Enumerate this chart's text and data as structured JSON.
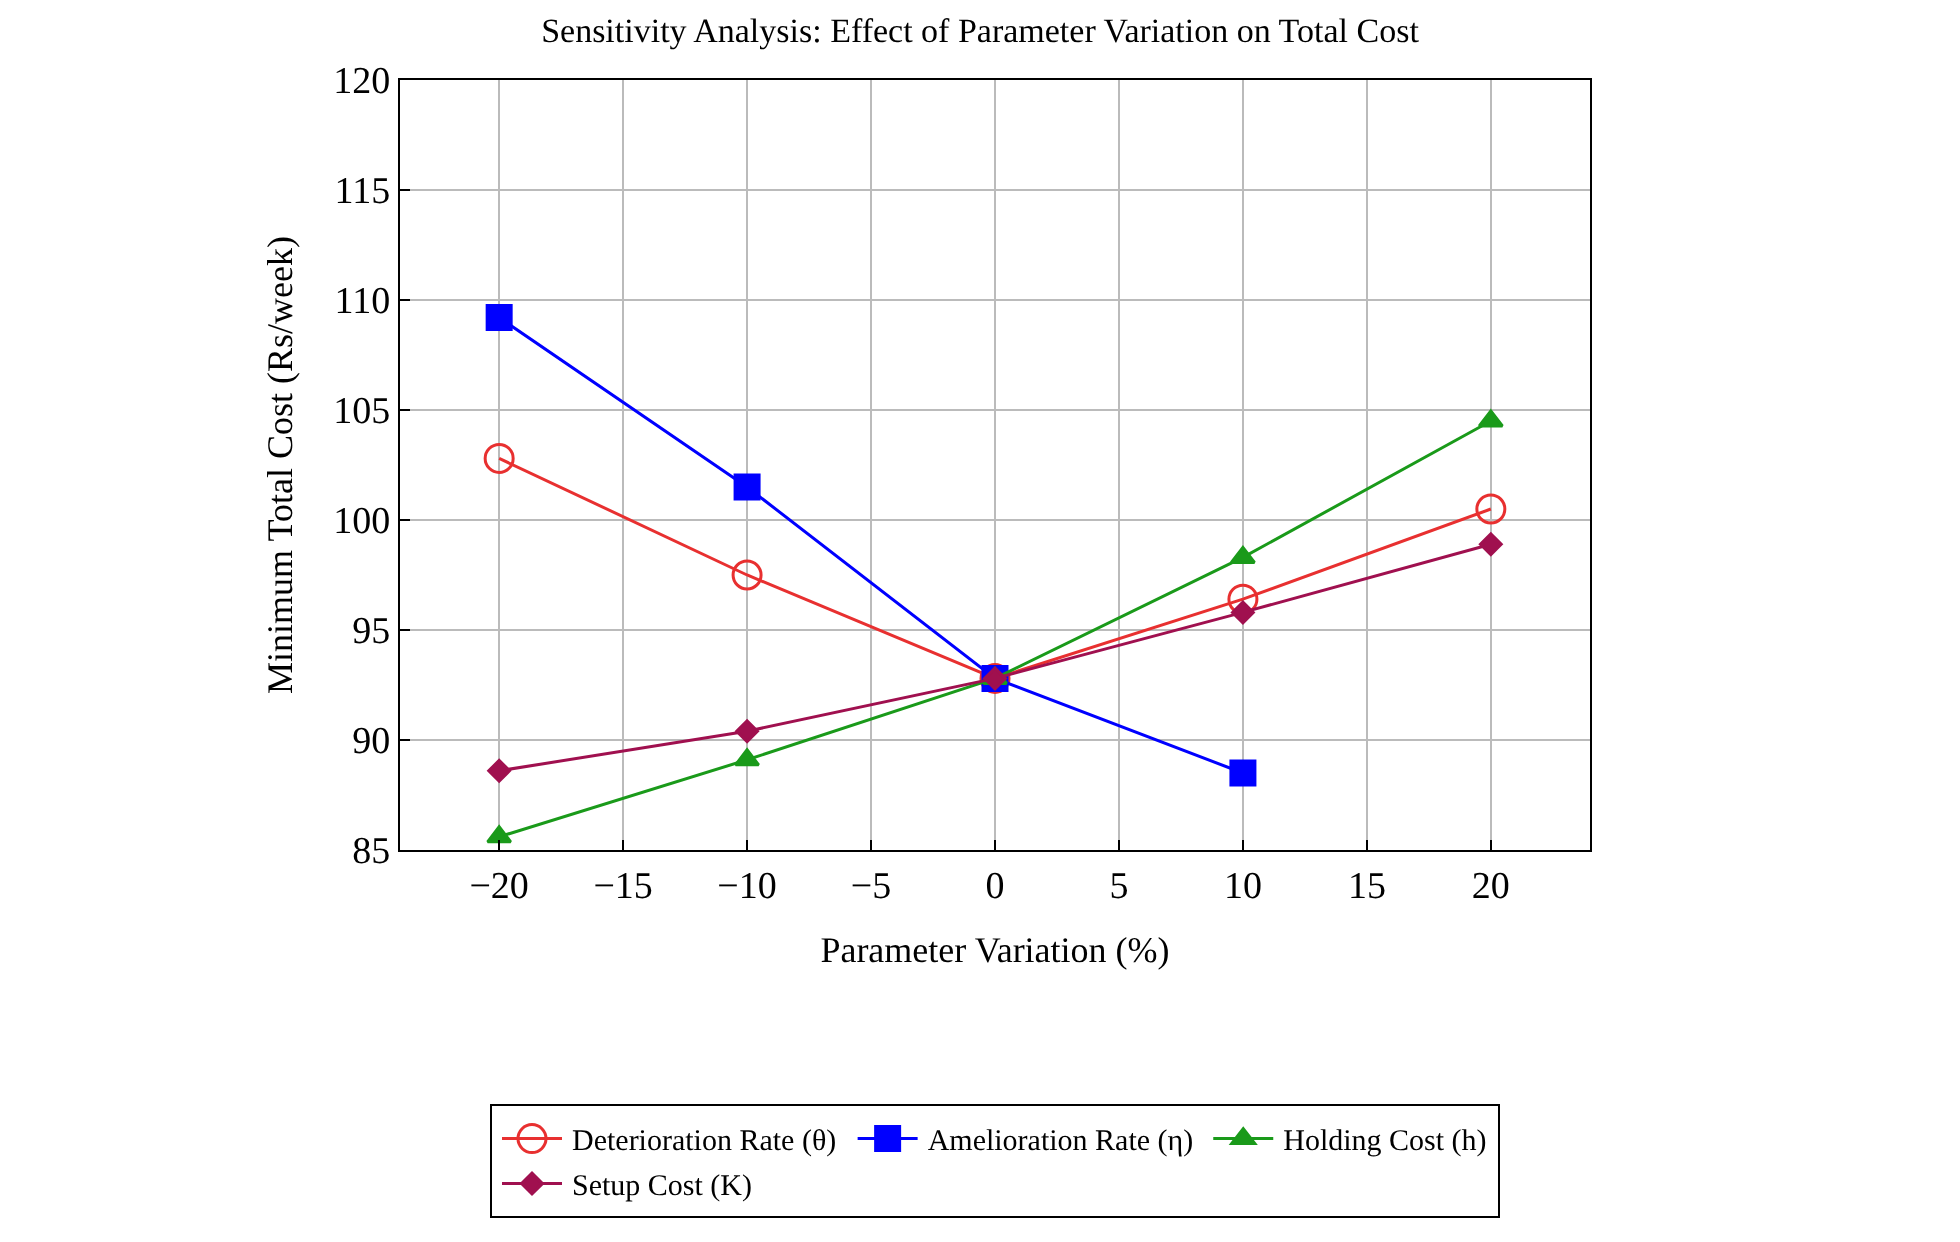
{
  "chart_data": {
    "type": "line",
    "title": "Sensitivity Analysis: Effect of Parameter Variation on Total Cost",
    "xlabel": "Parameter Variation (%)",
    "ylabel": "Minimum Total Cost (Rs/week)",
    "x": [
      -20,
      -10,
      0,
      10,
      20
    ],
    "series": [
      {
        "name": "Deterioration Rate (θ)",
        "color": "#e83030",
        "marker": "circle-open",
        "values": [
          102.8,
          97.5,
          92.8,
          96.4,
          100.5
        ]
      },
      {
        "name": "Amelioration Rate (η)",
        "color": "#0000ff",
        "marker": "square",
        "values": [
          109.2,
          101.5,
          92.8,
          88.5,
          null
        ]
      },
      {
        "name": "Holding Cost (h)",
        "color": "#1a9a1a",
        "marker": "triangle",
        "values": [
          85.6,
          89.1,
          92.8,
          98.3,
          104.5
        ]
      },
      {
        "name": "Setup Cost (K)",
        "color": "#a0104f",
        "marker": "diamond",
        "values": [
          88.6,
          90.4,
          92.8,
          95.8,
          98.9
        ]
      }
    ],
    "xlim": [
      -24,
      24
    ],
    "ylim": [
      85,
      120
    ],
    "xticks": [
      {
        "value": -20,
        "label": "−20"
      },
      {
        "value": -15,
        "label": "−15"
      },
      {
        "value": -10,
        "label": "−10"
      },
      {
        "value": -5,
        "label": "−5"
      },
      0,
      5,
      10,
      15,
      20
    ],
    "yticks": [
      85,
      90,
      95,
      100,
      105,
      110,
      115,
      120
    ],
    "grid": true,
    "legend": "bottom",
    "line_style": "solid"
  }
}
